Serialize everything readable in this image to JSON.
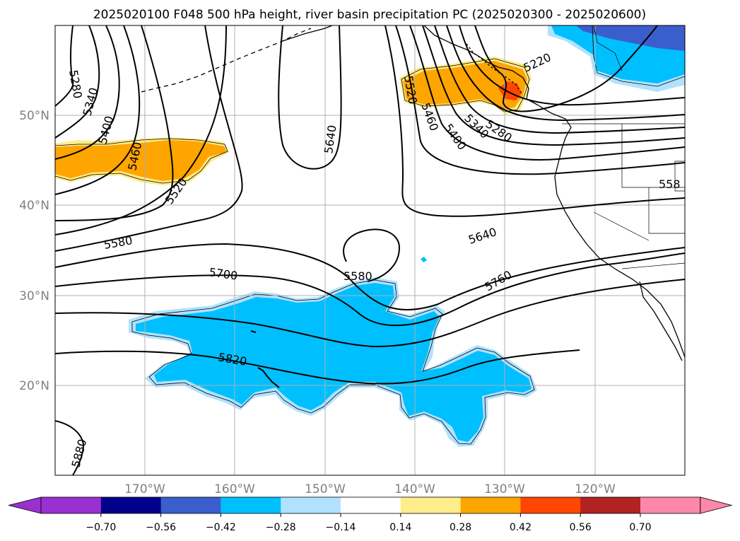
{
  "title": "2025020100 F048 500 hPa height, river basin precipitation PC (2025020300 - 2025020600)",
  "lat_labels": [
    "50°N",
    "40°N",
    "30°N",
    "20°N"
  ],
  "lon_labels": [
    "170°W",
    "160°W",
    "150°W",
    "140°W",
    "130°W",
    "120°W"
  ],
  "contour_labels": [
    "5280",
    "5340",
    "5400",
    "5460",
    "5520",
    "5580",
    "5700",
    "5820",
    "5880",
    "5640",
    "5580",
    "5520",
    "5460",
    "5400",
    "5340",
    "5280",
    "5220",
    "5640",
    "5760",
    "558"
  ],
  "colorbar": {
    "ticks": [
      "−0.70",
      "−0.56",
      "−0.42",
      "−0.28",
      "−0.14",
      "0.14",
      "0.28",
      "0.42",
      "0.56",
      "0.70"
    ],
    "colors": [
      "#9b30d0",
      "#00008b",
      "#3a5fcd",
      "#00bfff",
      "#b0e2ff",
      "#ffffff",
      "#ffec8b",
      "#ffa500",
      "#ff4500",
      "#b22222",
      "#ff88aa"
    ]
  },
  "fill_colors": {
    "blue": "#00bfff",
    "lightblue": "#b0e2ff",
    "navy": "#3a5fcd",
    "orange": "#ffa500",
    "yellow": "#ffec8b",
    "red": "#ff4500"
  }
}
